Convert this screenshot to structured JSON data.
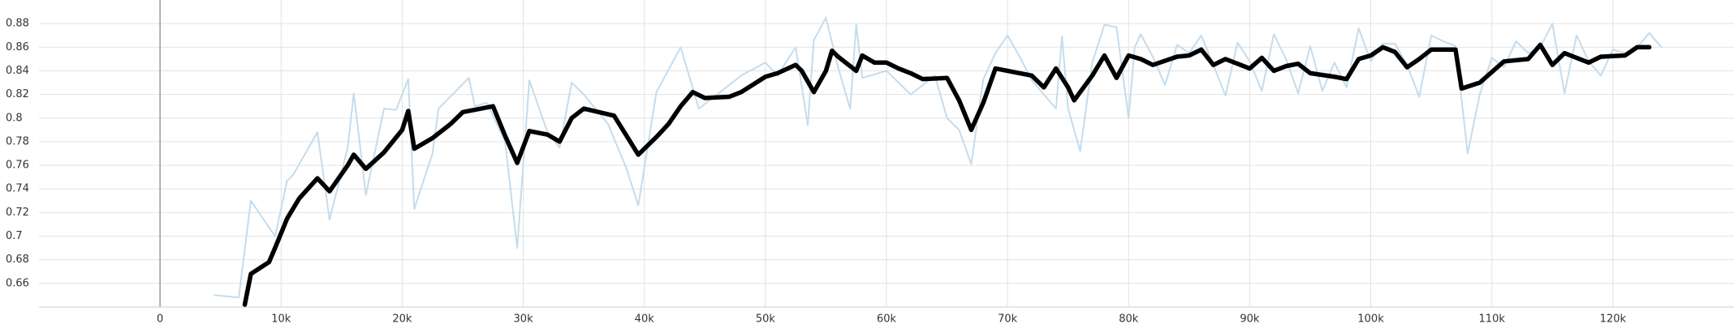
{
  "chart_data": {
    "type": "line",
    "xlim": [
      -10000,
      130000
    ],
    "ylim": [
      0.64,
      0.9
    ],
    "xticks": [
      0,
      {
        "value": 10000,
        "label": "10k"
      },
      {
        "value": 20000,
        "label": "20k"
      },
      {
        "value": 30000,
        "label": "30k"
      },
      {
        "value": 40000,
        "label": "40k"
      },
      {
        "value": 50000,
        "label": "50k"
      },
      {
        "value": 60000,
        "label": "60k"
      },
      {
        "value": 70000,
        "label": "70k"
      },
      {
        "value": 80000,
        "label": "80k"
      },
      {
        "value": 90000,
        "label": "90k"
      },
      {
        "value": 100000,
        "label": "100k"
      },
      {
        "value": 110000,
        "label": "110k"
      },
      {
        "value": 120000,
        "label": "120k"
      }
    ],
    "yticks": [
      0.66,
      0.68,
      0.7,
      0.72,
      0.74,
      0.76,
      0.78,
      0.8,
      0.82,
      0.84,
      0.86,
      0.88
    ],
    "grid": true,
    "series": [
      {
        "color": "#c4dced",
        "width": 2,
        "x": [
          4500,
          6500,
          7500,
          9500,
          10500,
          11000,
          13000,
          14000,
          15500,
          16000,
          17000,
          18500,
          19500,
          20500,
          21000,
          22500,
          23000,
          25500,
          26000,
          27000,
          28500,
          29500,
          30500,
          32000,
          33000,
          34000,
          35000,
          37000,
          38500,
          39500,
          41000,
          43000,
          44500,
          46000,
          48000,
          50000,
          51000,
          52500,
          53500,
          54000,
          55000,
          56000,
          57000,
          57500,
          58000,
          60000,
          62000,
          64000,
          65000,
          66000,
          67000,
          68000,
          69000,
          70000,
          71000,
          72000,
          74000,
          74500,
          75000,
          76000,
          77000,
          78000,
          79000,
          80000,
          80500,
          81000,
          82000,
          83000,
          84000,
          85000,
          86000,
          87000,
          88000,
          89000,
          90000,
          91000,
          92000,
          93000,
          94000,
          95000,
          96000,
          97000,
          98000,
          99000,
          100000,
          101000,
          102000,
          103000,
          104000,
          105000,
          106000,
          107000,
          108000,
          109000,
          110000,
          111000,
          112000,
          113000,
          114000,
          115000,
          116000,
          117000,
          118000,
          119000,
          120000,
          121000,
          122000,
          123000,
          124000
        ],
        "values": [
          0.65,
          0.648,
          0.73,
          0.7,
          0.747,
          0.752,
          0.788,
          0.714,
          0.775,
          0.821,
          0.735,
          0.808,
          0.807,
          0.833,
          0.723,
          0.77,
          0.808,
          0.834,
          0.81,
          0.813,
          0.78,
          0.69,
          0.832,
          0.788,
          0.775,
          0.83,
          0.82,
          0.795,
          0.758,
          0.726,
          0.822,
          0.86,
          0.808,
          0.82,
          0.836,
          0.847,
          0.836,
          0.86,
          0.794,
          0.866,
          0.885,
          0.843,
          0.808,
          0.879,
          0.834,
          0.84,
          0.82,
          0.836,
          0.8,
          0.79,
          0.761,
          0.833,
          0.855,
          0.87,
          0.852,
          0.832,
          0.808,
          0.869,
          0.808,
          0.772,
          0.847,
          0.879,
          0.877,
          0.8,
          0.86,
          0.871,
          0.852,
          0.828,
          0.862,
          0.855,
          0.87,
          0.845,
          0.819,
          0.864,
          0.848,
          0.823,
          0.871,
          0.85,
          0.821,
          0.861,
          0.823,
          0.847,
          0.826,
          0.876,
          0.848,
          0.863,
          0.863,
          0.845,
          0.818,
          0.87,
          0.865,
          0.861,
          0.77,
          0.82,
          0.851,
          0.843,
          0.865,
          0.855,
          0.86,
          0.88,
          0.821,
          0.87,
          0.848,
          0.836,
          0.858,
          0.855,
          0.86,
          0.872,
          0.86
        ]
      },
      {
        "color": "#000000",
        "width": 5.5,
        "x": [
          7000,
          7500,
          9000,
          9500,
          10500,
          11500,
          13000,
          14000,
          15500,
          16000,
          17000,
          18500,
          20000,
          20500,
          21000,
          22500,
          24000,
          25000,
          27500,
          28500,
          29500,
          30500,
          32000,
          33000,
          34000,
          35000,
          37500,
          39500,
          41000,
          42000,
          43000,
          44000,
          45000,
          47000,
          48000,
          50000,
          51000,
          52500,
          53000,
          54000,
          55000,
          55500,
          56000,
          57500,
          58000,
          59000,
          60000,
          61000,
          62000,
          63000,
          65000,
          66000,
          67000,
          68000,
          69000,
          72000,
          73000,
          74000,
          75000,
          75500,
          77000,
          78000,
          79000,
          80000,
          81000,
          82000,
          84000,
          85000,
          86000,
          87000,
          88000,
          90000,
          91000,
          92000,
          93000,
          94000,
          95000,
          97000,
          98000,
          99000,
          100000,
          101000,
          102000,
          103000,
          104000,
          105000,
          107000,
          107500,
          109000,
          111000,
          113000,
          114000,
          115000,
          116000,
          118000,
          119000,
          121000,
          122000,
          123000
        ],
        "values": [
          0.642,
          0.668,
          0.678,
          0.69,
          0.715,
          0.732,
          0.749,
          0.738,
          0.76,
          0.769,
          0.757,
          0.771,
          0.79,
          0.806,
          0.774,
          0.783,
          0.795,
          0.805,
          0.81,
          0.785,
          0.762,
          0.789,
          0.786,
          0.78,
          0.8,
          0.808,
          0.802,
          0.769,
          0.784,
          0.795,
          0.81,
          0.822,
          0.817,
          0.818,
          0.822,
          0.835,
          0.838,
          0.845,
          0.84,
          0.822,
          0.84,
          0.857,
          0.852,
          0.84,
          0.853,
          0.847,
          0.847,
          0.842,
          0.838,
          0.833,
          0.834,
          0.815,
          0.79,
          0.813,
          0.842,
          0.836,
          0.826,
          0.842,
          0.826,
          0.815,
          0.836,
          0.853,
          0.834,
          0.853,
          0.85,
          0.845,
          0.852,
          0.853,
          0.858,
          0.845,
          0.85,
          0.842,
          0.851,
          0.84,
          0.844,
          0.846,
          0.838,
          0.835,
          0.833,
          0.85,
          0.853,
          0.86,
          0.856,
          0.843,
          0.85,
          0.858,
          0.858,
          0.825,
          0.83,
          0.848,
          0.85,
          0.862,
          0.845,
          0.855,
          0.847,
          0.852,
          0.853,
          0.86,
          0.86
        ]
      }
    ]
  }
}
